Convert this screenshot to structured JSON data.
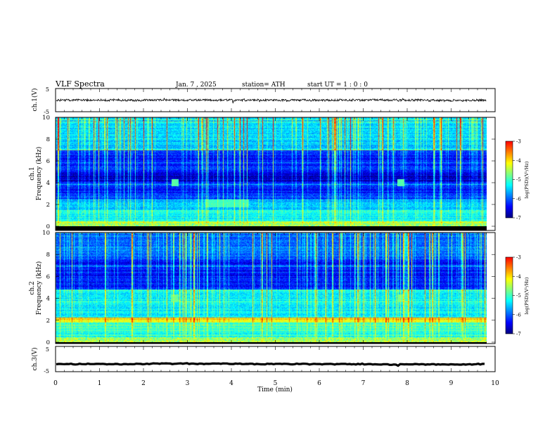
{
  "header": {
    "title": "VLF  Spectra",
    "date": "Jan.  7  , 2025",
    "station": "station= ATH",
    "start_ut": "start  UT  =   1  : 0   : 0"
  },
  "colors": {
    "colormap": [
      "#00007f",
      "#0000ff",
      "#0080ff",
      "#00ffff",
      "#80ff80",
      "#ffff00",
      "#ff8000",
      "#ff0000",
      "#ffffff"
    ],
    "waveform": "#000000"
  },
  "chart_data": [
    {
      "type": "line",
      "name": "ch1-waveform",
      "ylabel": "ch.1(V)",
      "ylim": [
        -5,
        5
      ],
      "yticks": [
        "5",
        "-5"
      ],
      "xlim": [
        0,
        10
      ],
      "x_extent_min": 9.8,
      "level": 0.0,
      "noise_amplitude": 0.45
    },
    {
      "type": "heatmap",
      "name": "ch1-spectrogram",
      "ylabel_top": "ch.1",
      "ylabel": "Frequency  (kHz)",
      "ylim": [
        0,
        10
      ],
      "yticks": [
        "0",
        "2",
        "4",
        "6",
        "8",
        "10"
      ],
      "xlim": [
        0,
        10
      ],
      "x_extent_min": 9.8,
      "colorbar": {
        "label": "log(PSD)(V²/Hz)",
        "range": [
          -7,
          -3
        ],
        "ticks": [
          "-3",
          "-4",
          "-5",
          "-6",
          "-7"
        ]
      },
      "features": [
        {
          "kind": "band",
          "f_low": 0.0,
          "f_high": 0.5,
          "level": -5.0
        },
        {
          "kind": "band",
          "f_low": 0.5,
          "f_high": 1.5,
          "level": -5.3
        },
        {
          "kind": "band",
          "f_low": 1.5,
          "f_high": 2.5,
          "level": -5.6
        },
        {
          "kind": "band",
          "f_low": 2.5,
          "f_high": 4.0,
          "level": -6.3
        },
        {
          "kind": "band",
          "f_low": 4.0,
          "f_high": 5.0,
          "level": -6.7
        },
        {
          "kind": "band",
          "f_low": 5.0,
          "f_high": 7.0,
          "level": -6.3
        },
        {
          "kind": "band",
          "f_low": 7.0,
          "f_high": 10.0,
          "level": -5.5
        },
        {
          "kind": "hump",
          "t_start": 3.4,
          "t_end": 4.4,
          "f": 2.1,
          "level": -5.0
        },
        {
          "kind": "blob",
          "t": 2.72,
          "f": 4.0,
          "level": -4.9
        },
        {
          "kind": "blob",
          "t": 7.85,
          "f": 4.0,
          "level": -4.9
        }
      ]
    },
    {
      "type": "heatmap",
      "name": "ch2-spectrogram",
      "ylabel_top": "ch.2",
      "ylabel": "Frequency  (kHz)",
      "ylim": [
        0,
        10
      ],
      "yticks": [
        "0",
        "2",
        "4",
        "6",
        "8",
        "10"
      ],
      "xlim": [
        0,
        10
      ],
      "x_extent_min": 9.8,
      "colorbar": {
        "label": "log(PSD)(V²/Hz)",
        "range": [
          -7,
          -3
        ],
        "ticks": [
          "-3",
          "-4",
          "-5",
          "-6",
          "-7"
        ]
      },
      "features": [
        {
          "kind": "band",
          "f_low": 0.0,
          "f_high": 1.0,
          "level": -5.2
        },
        {
          "kind": "band",
          "f_low": 1.0,
          "f_high": 1.8,
          "level": -5.0
        },
        {
          "kind": "band",
          "f_low": 1.8,
          "f_high": 2.2,
          "level": -4.3
        },
        {
          "kind": "band",
          "f_low": 2.2,
          "f_high": 4.8,
          "level": -5.4
        },
        {
          "kind": "band",
          "f_low": 4.8,
          "f_high": 7.5,
          "level": -6.4
        },
        {
          "kind": "band",
          "f_low": 7.5,
          "f_high": 10.0,
          "level": -6.0
        },
        {
          "kind": "blob",
          "t": 2.72,
          "f": 4.0,
          "level": -4.8
        },
        {
          "kind": "blob",
          "t": 7.85,
          "f": 4.0,
          "level": -4.8
        }
      ]
    },
    {
      "type": "line",
      "name": "ch3-waveform",
      "ylabel": "ch.3(V)",
      "ylim": [
        -5,
        5
      ],
      "yticks": [
        "5",
        "-5"
      ],
      "xlim": [
        0,
        10
      ],
      "x_extent_min": 9.8,
      "level": -2.0,
      "noise_amplitude": 0.15,
      "xlabel": "Time  (min)",
      "xticks": [
        "0",
        "1",
        "2",
        "3",
        "4",
        "5",
        "6",
        "7",
        "8",
        "9",
        "10"
      ]
    }
  ]
}
